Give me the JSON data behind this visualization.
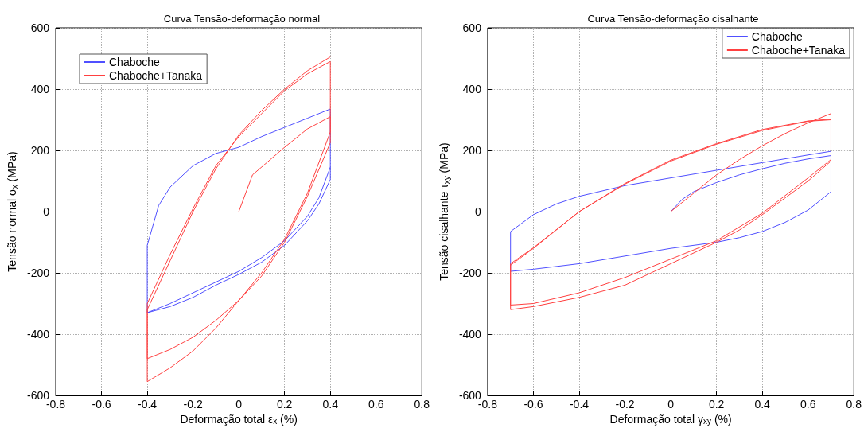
{
  "chart_data": [
    {
      "type": "line",
      "title": "Curva Tensão-deformação normal",
      "xlabel": "Deformação total ε$_{x}$ (%)",
      "ylabel": "Tensão normal σ$_{x}$ (MPa)",
      "xlim": [
        -0.8,
        0.8
      ],
      "xticks": [
        -0.8,
        -0.6,
        -0.4,
        -0.2,
        0,
        0.2,
        0.4,
        0.6,
        0.8
      ],
      "ylim": [
        -600,
        600
      ],
      "yticks": [
        -600,
        -400,
        -200,
        0,
        200,
        400,
        600
      ],
      "grid": true,
      "legend": "top left",
      "marker": "none",
      "line_style": "solid",
      "series": [
        {
          "name": "Chaboche",
          "color": "#5050ff",
          "x": [
            -0.4,
            -0.4,
            -0.35,
            -0.3,
            -0.2,
            -0.1,
            0,
            0.1,
            0.2,
            0.3,
            0.4,
            0.4,
            0.35,
            0.3,
            0.2,
            0.1,
            0,
            -0.1,
            -0.2,
            -0.3,
            -0.4,
            -0.3,
            -0.2,
            -0.1,
            0,
            0.1,
            0.2,
            0.3,
            0.35,
            0.4
          ],
          "values": [
            -330,
            -110,
            20,
            80,
            150,
            190,
            210,
            245,
            275,
            305,
            335,
            105,
            25,
            -30,
            -110,
            -165,
            -205,
            -240,
            -280,
            -310,
            -330,
            -300,
            -265,
            -230,
            -195,
            -150,
            -95,
            -15,
            45,
            145
          ]
        },
        {
          "name": "Chaboche+Tanaka",
          "color": "#ff4040",
          "x": [
            0,
            0.06,
            0.2,
            0.3,
            0.4,
            0.4,
            0.3,
            0.2,
            0.1,
            0,
            -0.1,
            -0.2,
            -0.3,
            -0.4,
            -0.4,
            -0.3,
            -0.2,
            -0.1,
            0,
            0.1,
            0.2,
            0.3,
            0.4,
            0.4,
            0.3,
            0.2,
            0.1,
            0,
            -0.1,
            -0.2,
            -0.3,
            -0.4,
            -0.4,
            -0.3,
            -0.2,
            -0.1,
            0,
            0.1,
            0.2,
            0.3,
            0.4
          ],
          "values": [
            0,
            120,
            210,
            270,
            310,
            225,
            50,
            -100,
            -210,
            -290,
            -355,
            -410,
            -450,
            -480,
            -300,
            -140,
            10,
            150,
            245,
            320,
            395,
            450,
            490,
            260,
            60,
            -90,
            -200,
            -290,
            -380,
            -455,
            -510,
            -555,
            -320,
            -160,
            0,
            140,
            250,
            330,
            400,
            460,
            505
          ]
        }
      ]
    },
    {
      "type": "line",
      "title": "Curva Tensão-deformação cisalhante",
      "xlabel": "Deformação total γ$_{xy}$ (%)",
      "ylabel": "Tensão cisalhante τ$_{xy}$ (MPa)",
      "xlim": [
        -0.8,
        0.8
      ],
      "xticks": [
        -0.8,
        -0.6,
        -0.4,
        -0.2,
        0,
        0.2,
        0.4,
        0.6,
        0.8
      ],
      "ylim": [
        -600,
        600
      ],
      "yticks": [
        -600,
        -400,
        -200,
        0,
        200,
        400,
        600
      ],
      "grid": true,
      "legend": "top right",
      "marker": "none",
      "line_style": "solid",
      "series": [
        {
          "name": "Chaboche",
          "color": "#5050ff",
          "x": [
            0,
            0.05,
            0.1,
            0.2,
            0.3,
            0.4,
            0.5,
            0.6,
            0.7,
            0.7,
            0.6,
            0.5,
            0.4,
            0.3,
            0.2,
            0,
            -0.2,
            -0.4,
            -0.6,
            -0.7,
            -0.7,
            -0.6,
            -0.5,
            -0.4,
            -0.2,
            0,
            0.2,
            0.4,
            0.6,
            0.7
          ],
          "values": [
            0,
            40,
            65,
            95,
            120,
            140,
            158,
            172,
            183,
            65,
            5,
            -35,
            -65,
            -85,
            -100,
            -120,
            -145,
            -170,
            -188,
            -195,
            -65,
            -10,
            25,
            50,
            85,
            110,
            135,
            160,
            185,
            197
          ]
        },
        {
          "name": "Chaboche+Tanaka",
          "color": "#ff4040",
          "x": [
            0,
            0.1,
            0.2,
            0.3,
            0.4,
            0.5,
            0.6,
            0.7,
            0.7,
            0.6,
            0.5,
            0.4,
            0.3,
            0.2,
            0,
            -0.2,
            -0.4,
            -0.6,
            -0.7,
            -0.7,
            -0.6,
            -0.4,
            -0.2,
            0,
            0.2,
            0.4,
            0.6,
            0.7,
            0.7,
            0.6,
            0.4,
            0.2,
            0,
            -0.2,
            -0.4,
            -0.6,
            -0.7,
            -0.7,
            -0.6,
            -0.4,
            -0.2,
            0,
            0.2,
            0.4,
            0.6,
            0.7
          ],
          "values": [
            0,
            60,
            120,
            170,
            215,
            255,
            290,
            320,
            165,
            100,
            45,
            -10,
            -60,
            -100,
            -170,
            -240,
            -280,
            -310,
            -320,
            -175,
            -120,
            0,
            90,
            165,
            220,
            265,
            295,
            300,
            170,
            110,
            -5,
            -95,
            -155,
            -215,
            -265,
            -300,
            -305,
            -170,
            -118,
            0,
            92,
            168,
            222,
            268,
            296,
            302
          ]
        }
      ]
    }
  ]
}
